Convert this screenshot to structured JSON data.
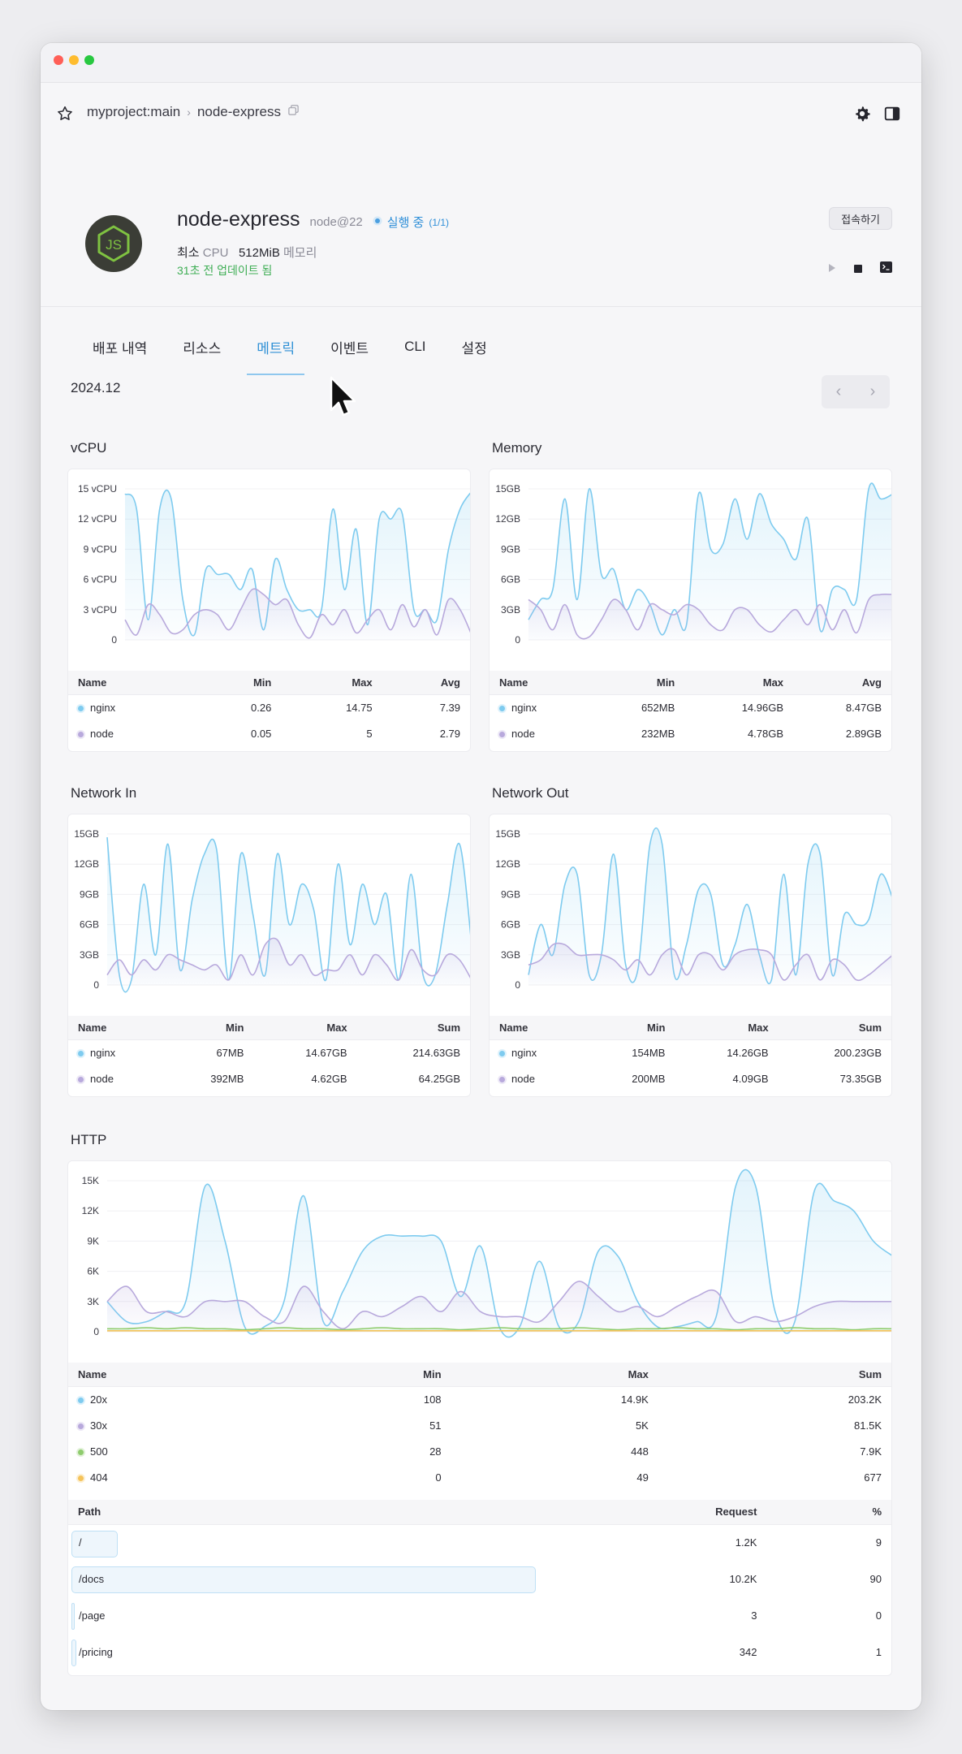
{
  "breadcrumb": {
    "project": "myproject:main",
    "service": "node-express"
  },
  "service": {
    "name": "node-express",
    "version": "node@22",
    "status": "실행 중",
    "status_count": "(1/1)",
    "cpu_prefix": "최소",
    "cpu_label": "CPU",
    "memory_value": "512MiB",
    "memory_label": "메모리",
    "updated": "31초 전 업데이트 됨",
    "connect_label": "접속하기"
  },
  "tabs": [
    "배포 내역",
    "리소스",
    "메트릭",
    "이벤트",
    "CLI",
    "설정"
  ],
  "active_tab": 2,
  "period": "2024.12",
  "colors": {
    "series1": "#7ecbef",
    "series2": "#b8a9dc",
    "series3": "#8fcc6e",
    "series4": "#f5c35a",
    "accent": "#2d8fd5",
    "status": "#3fae55"
  },
  "icons": [
    "star-icon",
    "copy-icon",
    "gear-icon",
    "sidebar-toggle-icon",
    "nodejs-logo",
    "play-icon",
    "stop-icon",
    "terminal-icon",
    "chevron-left-icon",
    "chevron-right-icon",
    "cursor-icon"
  ],
  "chart_data": [
    {
      "id": "vcpu",
      "type": "area",
      "title": "vCPU",
      "yticks": [
        "15 vCPU",
        "12 vCPU",
        "9 vCPU",
        "6 vCPU",
        "3 vCPU",
        "0"
      ],
      "ylim": [
        0,
        15
      ],
      "x": [
        0,
        1,
        2,
        3,
        4,
        5,
        6,
        7,
        8,
        9,
        10,
        11,
        12,
        13,
        14,
        15,
        16,
        17,
        18,
        19,
        20,
        21,
        22,
        23,
        24,
        25,
        26,
        27,
        28,
        29,
        30
      ],
      "series": [
        {
          "name": "nginx",
          "values": [
            14.5,
            13,
            2,
            13,
            14,
            4,
            0.5,
            7,
            6.5,
            6.5,
            5,
            7,
            1,
            8,
            5,
            3,
            3,
            3,
            13,
            5,
            11,
            1.5,
            12,
            12,
            12.5,
            3,
            3,
            2,
            9,
            13,
            14.75
          ]
        },
        {
          "name": "node",
          "values": [
            2,
            0.5,
            3.5,
            2.5,
            0.7,
            1,
            2.5,
            3,
            2.5,
            1,
            3,
            5,
            4.5,
            3.5,
            4,
            1.5,
            0.2,
            2.5,
            1.5,
            3,
            0.7,
            2,
            3,
            1,
            3.5,
            1.3,
            3,
            0.5,
            4,
            3,
            0.5
          ]
        }
      ],
      "stats": {
        "headers": [
          "Name",
          "Min",
          "Max",
          "Avg"
        ],
        "rows": [
          [
            "nginx",
            "0.26",
            "14.75",
            "7.39"
          ],
          [
            "node",
            "0.05",
            "5",
            "2.79"
          ]
        ]
      }
    },
    {
      "id": "memory",
      "type": "area",
      "title": "Memory",
      "yticks": [
        "15GB",
        "12GB",
        "9GB",
        "6GB",
        "3GB",
        "0"
      ],
      "ylim": [
        0,
        15
      ],
      "x": [
        0,
        1,
        2,
        3,
        4,
        5,
        6,
        7,
        8,
        9,
        10,
        11,
        12,
        13,
        14,
        15,
        16,
        17,
        18,
        19,
        20,
        21,
        22,
        23,
        24,
        25,
        26,
        27,
        28,
        29,
        30
      ],
      "series": [
        {
          "name": "nginx",
          "values": [
            2,
            4,
            5,
            14,
            4,
            15,
            6.5,
            7,
            3,
            5,
            3.5,
            0.5,
            3,
            1.5,
            14.5,
            9,
            9.5,
            14,
            10,
            14.5,
            11.5,
            10,
            8,
            12,
            1,
            5,
            5,
            4,
            15,
            14,
            14.5
          ]
        },
        {
          "name": "node",
          "values": [
            4,
            3,
            1,
            3.5,
            0.5,
            0.3,
            2,
            4,
            3,
            1,
            3.5,
            3,
            2.5,
            3.5,
            3,
            1.5,
            1,
            3,
            3,
            1.5,
            0.8,
            2,
            3,
            1.5,
            3.5,
            1,
            3,
            0.7,
            4,
            4.5,
            4.5
          ]
        }
      ],
      "stats": {
        "headers": [
          "Name",
          "Min",
          "Max",
          "Avg"
        ],
        "rows": [
          [
            "nginx",
            "652MB",
            "14.96GB",
            "8.47GB"
          ],
          [
            "node",
            "232MB",
            "4.78GB",
            "2.89GB"
          ]
        ]
      }
    },
    {
      "id": "netin",
      "type": "area",
      "title": "Network In",
      "yticks": [
        "15GB",
        "12GB",
        "9GB",
        "6GB",
        "3GB",
        "0"
      ],
      "ylim": [
        0,
        15
      ],
      "x": [
        0,
        1,
        2,
        3,
        4,
        5,
        6,
        7,
        8,
        9,
        10,
        11,
        12,
        13,
        14,
        15,
        16,
        17,
        18,
        19,
        20,
        21,
        22,
        23,
        24,
        25,
        26,
        27,
        28,
        29,
        30
      ],
      "series": [
        {
          "name": "nginx",
          "values": [
            14.67,
            1,
            0.5,
            10,
            3,
            14,
            1.5,
            8.5,
            13,
            13.5,
            0.5,
            13,
            7,
            1,
            13,
            6,
            10,
            7.5,
            0.5,
            12,
            4,
            10,
            6,
            9,
            0.5,
            11,
            1,
            1,
            8,
            14,
            4
          ]
        },
        {
          "name": "node",
          "values": [
            1,
            2.5,
            1,
            2.5,
            1.5,
            3,
            2.5,
            2,
            1.5,
            2,
            0.5,
            3,
            1,
            4,
            4.5,
            2,
            3,
            1,
            1.5,
            1.5,
            3,
            1,
            3,
            2,
            0.5,
            3.5,
            1.5,
            1,
            3,
            2.5,
            0.5
          ]
        }
      ],
      "stats": {
        "headers": [
          "Name",
          "Min",
          "Max",
          "Sum"
        ],
        "rows": [
          [
            "nginx",
            "67MB",
            "14.67GB",
            "214.63GB"
          ],
          [
            "node",
            "392MB",
            "4.62GB",
            "64.25GB"
          ]
        ]
      }
    },
    {
      "id": "netout",
      "type": "area",
      "title": "Network Out",
      "yticks": [
        "15GB",
        "12GB",
        "9GB",
        "6GB",
        "3GB",
        "0"
      ],
      "ylim": [
        0,
        15
      ],
      "x": [
        0,
        1,
        2,
        3,
        4,
        5,
        6,
        7,
        8,
        9,
        10,
        11,
        12,
        13,
        14,
        15,
        16,
        17,
        18,
        19,
        20,
        21,
        22,
        23,
        24,
        25,
        26,
        27,
        28,
        29,
        30
      ],
      "series": [
        {
          "name": "nginx",
          "values": [
            1,
            6,
            3,
            10,
            11,
            1,
            3,
            13,
            2,
            1.5,
            14,
            14,
            1,
            4,
            9.5,
            9,
            2,
            4,
            8,
            3,
            0.5,
            11,
            1,
            12,
            13,
            1,
            7,
            6,
            6.5,
            11,
            8.5
          ]
        },
        {
          "name": "node",
          "values": [
            2,
            2.5,
            4,
            4,
            3,
            3,
            3,
            2.5,
            1.5,
            2.5,
            1,
            3,
            3.5,
            1,
            3,
            3,
            1.5,
            3,
            3.5,
            3.5,
            3,
            0.5,
            2,
            3,
            0.5,
            2.5,
            2,
            0.5,
            1,
            2,
            3
          ]
        }
      ],
      "stats": {
        "headers": [
          "Name",
          "Min",
          "Max",
          "Sum"
        ],
        "rows": [
          [
            "nginx",
            "154MB",
            "14.26GB",
            "200.23GB"
          ],
          [
            "node",
            "200MB",
            "4.09GB",
            "73.35GB"
          ]
        ]
      }
    },
    {
      "id": "http",
      "type": "area",
      "title": "HTTP",
      "yticks": [
        "15K",
        "12K",
        "9K",
        "6K",
        "3K",
        "0"
      ],
      "ylim": [
        0,
        15
      ],
      "x": [
        0,
        1,
        2,
        3,
        4,
        5,
        6,
        7,
        8,
        9,
        10,
        11,
        12,
        13,
        14,
        15,
        16,
        17,
        18,
        19,
        20,
        21,
        22,
        23,
        24,
        25,
        26,
        27,
        28,
        29,
        30,
        31,
        32,
        33,
        34,
        35,
        36,
        37,
        38,
        39,
        40
      ],
      "series": [
        {
          "name": "20x",
          "values": [
            3,
            1,
            1,
            2,
            3,
            14.5,
            9,
            0.5,
            0.5,
            3,
            13.5,
            1,
            4,
            8,
            9.5,
            9.5,
            9.5,
            9,
            3.5,
            8.5,
            0.3,
            0.5,
            7,
            0.5,
            1,
            8,
            7.5,
            3,
            0.5,
            0.5,
            1,
            1.5,
            14.5,
            14.5,
            2,
            1,
            14,
            13,
            12,
            9,
            7.5
          ]
        },
        {
          "name": "30x",
          "values": [
            3,
            4.5,
            2,
            2,
            1.5,
            3,
            3,
            3,
            1.5,
            1,
            4.5,
            2,
            0.3,
            2,
            1.5,
            2.5,
            3.5,
            2,
            4,
            2,
            1.5,
            1.5,
            1,
            3,
            5,
            3.5,
            2,
            2.5,
            1.5,
            2.5,
            3.5,
            4,
            1,
            1.5,
            1,
            1.5,
            2.5,
            3,
            3,
            3,
            3
          ]
        },
        {
          "name": "500",
          "values": [
            0.3,
            0.3,
            0.4,
            0.3,
            0.4,
            0.3,
            0.3,
            0.2,
            0.3,
            0.4,
            0.3,
            0.3,
            0.2,
            0.3,
            0.4,
            0.3,
            0.3,
            0.3,
            0.2,
            0.3,
            0.4,
            0.3,
            0.3,
            0.3,
            0.4,
            0.3,
            0.2,
            0.3,
            0.3,
            0.4,
            0.3,
            0.3,
            0.2,
            0.3,
            0.3,
            0.4,
            0.3,
            0.3,
            0.2,
            0.3,
            0.3
          ]
        },
        {
          "name": "404",
          "values": [
            0.1,
            0.1,
            0.1,
            0.1,
            0.1,
            0.1,
            0.1,
            0.1,
            0.1,
            0.1,
            0.1,
            0.1,
            0.1,
            0.1,
            0.1,
            0.1,
            0.1,
            0.1,
            0.1,
            0.1,
            0.1,
            0.1,
            0.1,
            0.1,
            0.1,
            0.1,
            0.1,
            0.1,
            0.1,
            0.1,
            0.1,
            0.1,
            0.1,
            0.1,
            0.1,
            0.1,
            0.1,
            0.1,
            0.1,
            0.1,
            0.1
          ]
        }
      ],
      "stats": {
        "headers": [
          "Name",
          "Min",
          "Max",
          "Sum"
        ],
        "rows": [
          [
            "20x",
            "108",
            "14.9K",
            "203.2K"
          ],
          [
            "30x",
            "51",
            "5K",
            "81.5K"
          ],
          [
            "500",
            "28",
            "448",
            "7.9K"
          ],
          [
            "404",
            "0",
            "49",
            "677"
          ]
        ]
      }
    }
  ],
  "paths": {
    "headers": [
      "Path",
      "Request",
      "%"
    ],
    "rows": [
      {
        "path": "/",
        "request": "1.2K",
        "pct": "9",
        "share": 9
      },
      {
        "path": "/docs",
        "request": "10.2K",
        "pct": "90",
        "share": 90
      },
      {
        "path": "/page",
        "request": "3",
        "pct": "0",
        "share": 0
      },
      {
        "path": "/pricing",
        "request": "342",
        "pct": "1",
        "share": 1
      }
    ]
  }
}
